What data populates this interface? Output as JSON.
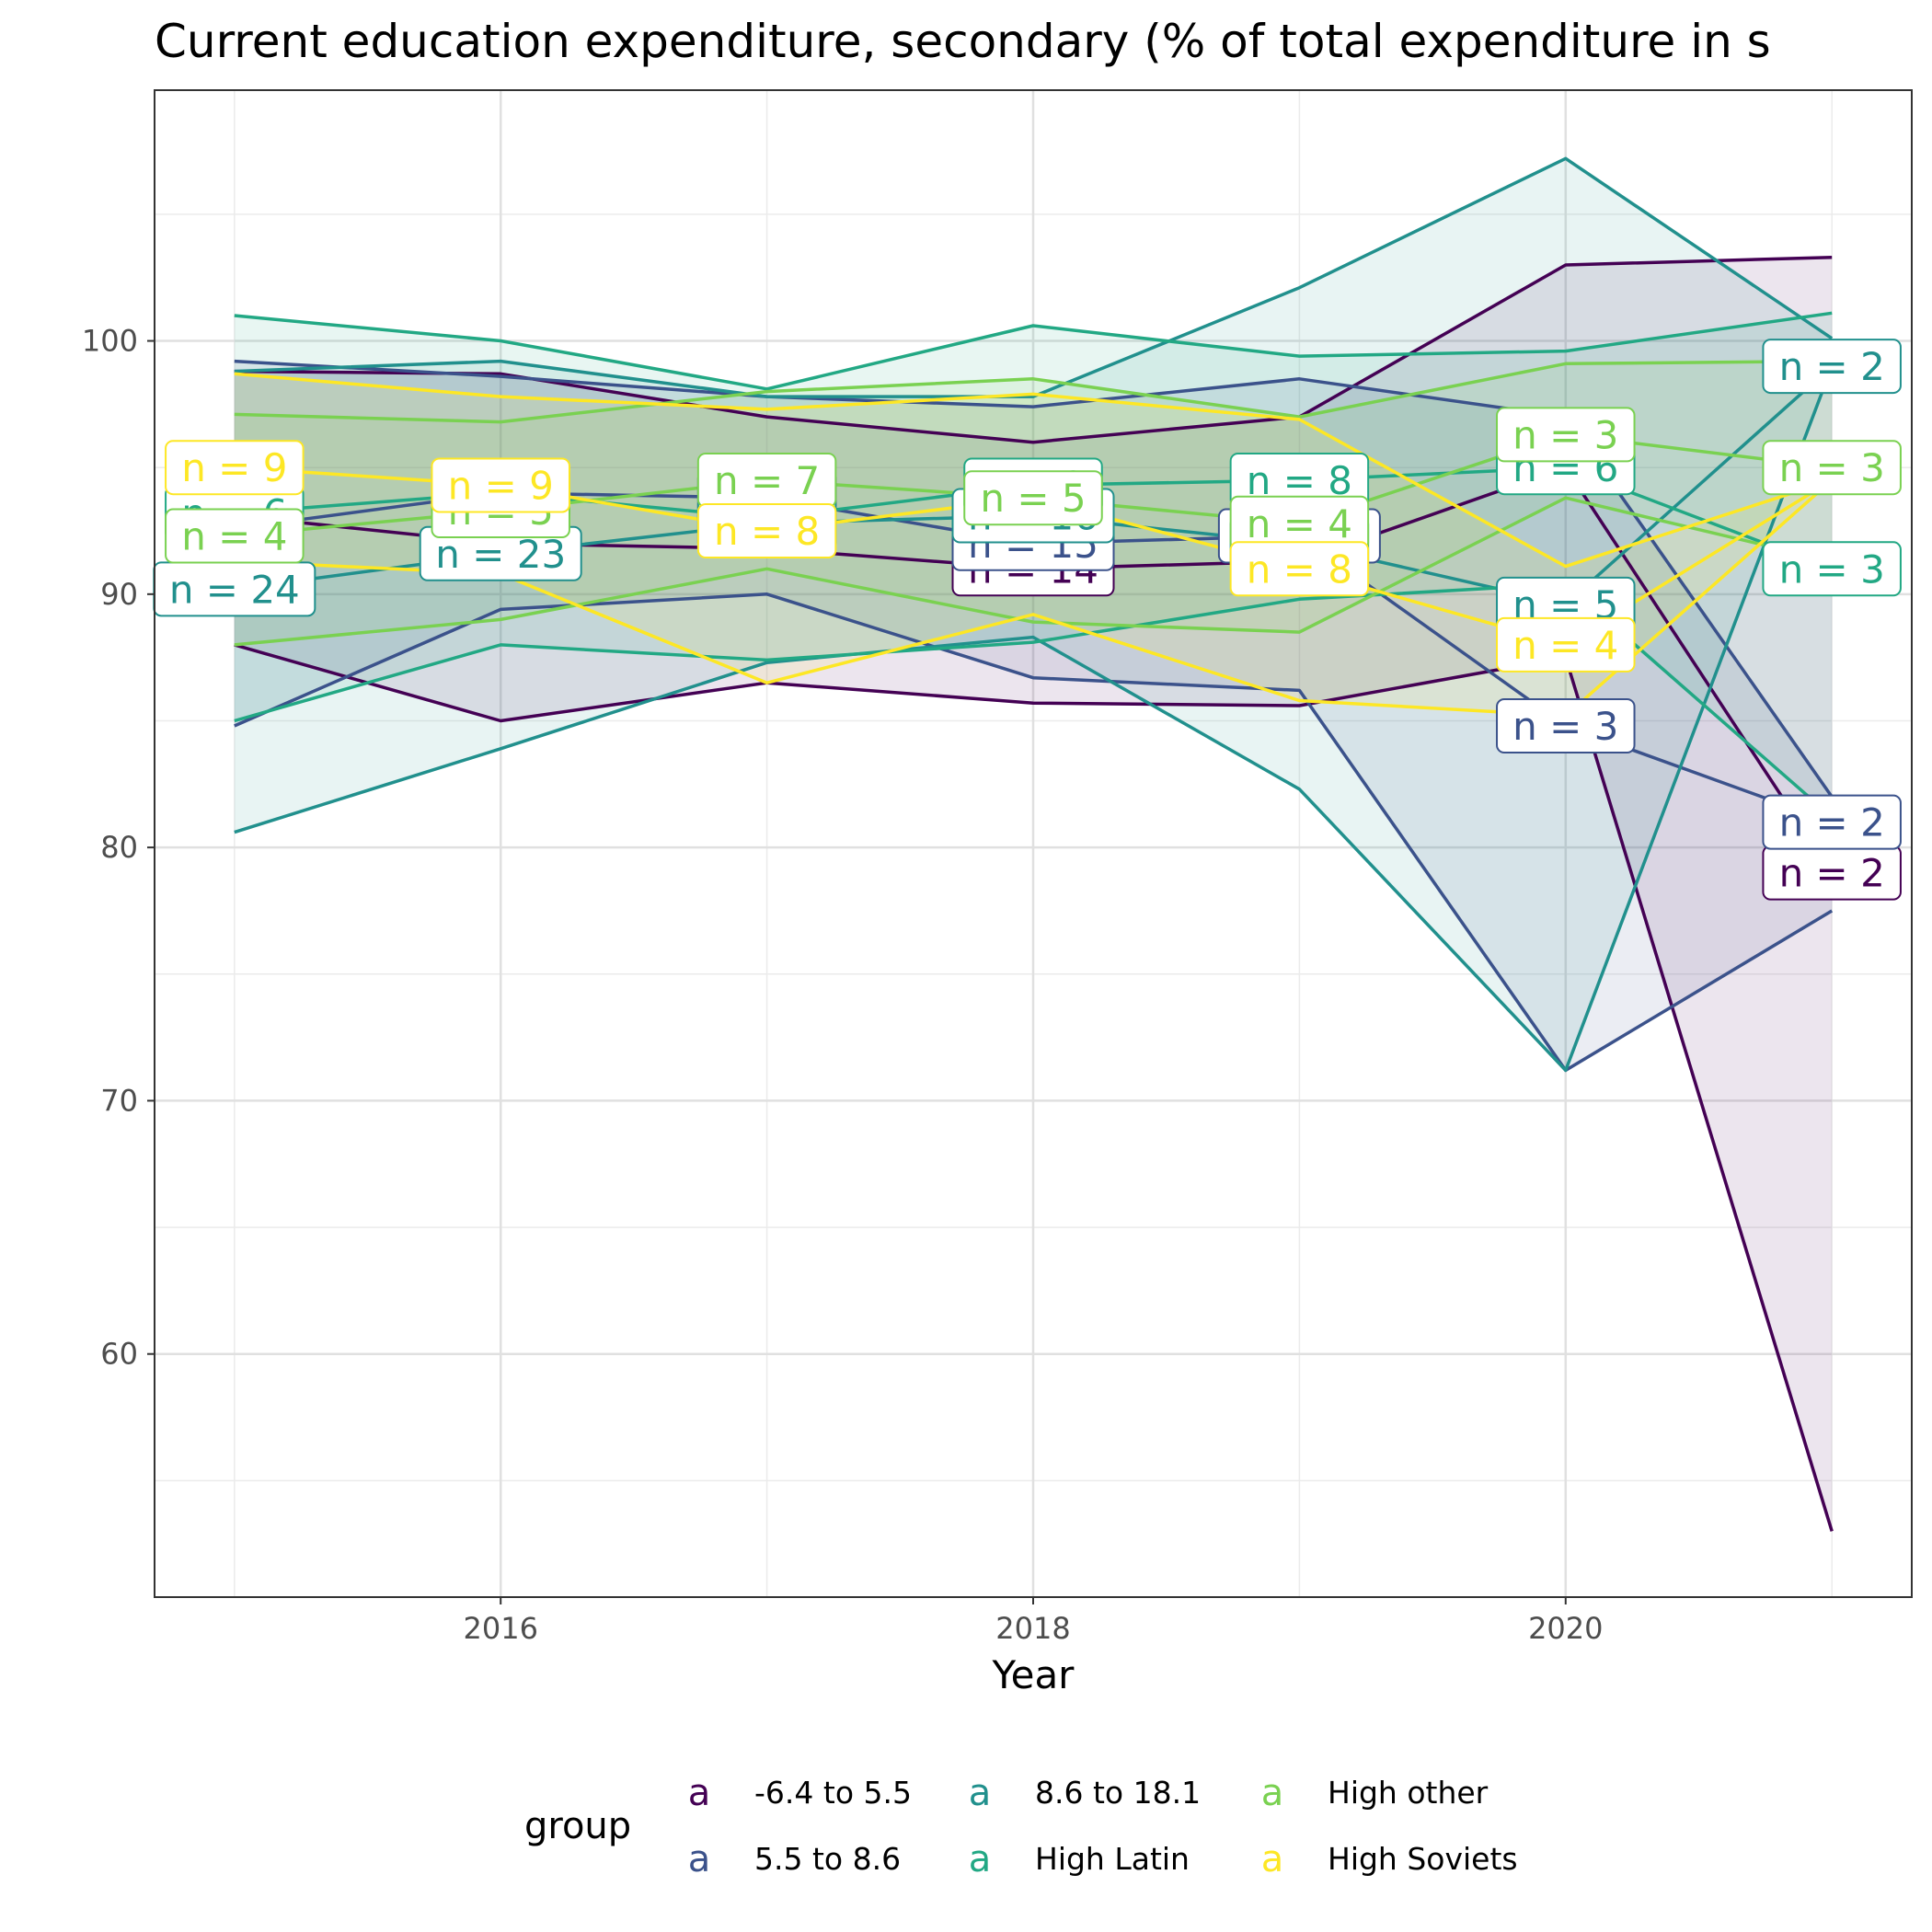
{
  "chart_data": {
    "type": "line",
    "title": "Current education expenditure, secondary (% of total expenditure in s",
    "xlabel": "Year",
    "ylabel": "",
    "x_ticks": [
      "2016",
      "2018",
      "2020"
    ],
    "y_ticks": [
      "60",
      "70",
      "80",
      "90",
      "100"
    ],
    "x_range": [
      2014.7,
      2021.3
    ],
    "ylim": [
      50.4,
      109.9
    ],
    "grid": true,
    "legend_position": "bottom",
    "legend_title": "group",
    "legend_key_glyph": "a",
    "series": [
      {
        "name": "-6.4 to 5.5",
        "color": "#440154",
        "x": [
          2015,
          2016,
          2017,
          2018,
          2019,
          2020,
          2021
        ],
        "mean": [
          93.1,
          92.0,
          91.8,
          91.0,
          91.3,
          95.0,
          79.0
        ],
        "upper": [
          98.8,
          98.7,
          97.0,
          96.0,
          97.0,
          103.0,
          103.3
        ],
        "lower": [
          88.0,
          85.0,
          86.5,
          85.7,
          85.6,
          87.5,
          53.0
        ],
        "n_labels": [
          "",
          "",
          "",
          "n = 14",
          "",
          "",
          "n = 2"
        ]
      },
      {
        "name": "5.5 to 8.6",
        "color": "#3b528b",
        "x": [
          2015,
          2016,
          2017,
          2018,
          2019,
          2020,
          2021
        ],
        "mean": [
          92.6,
          94.0,
          93.8,
          92.0,
          92.3,
          84.8,
          81.0
        ],
        "upper": [
          99.2,
          98.6,
          97.8,
          97.4,
          98.5,
          97.0,
          82.0
        ],
        "lower": [
          84.8,
          89.4,
          90.0,
          86.7,
          86.2,
          71.2,
          77.5
        ],
        "n_labels": [
          "",
          "",
          "n = 9",
          "n = 15",
          "n = 10",
          "n = 3",
          "n = 2"
        ]
      },
      {
        "name": "8.6 to 18.1",
        "color": "#21908d",
        "x": [
          2015,
          2016,
          2017,
          2018,
          2019,
          2020,
          2021
        ],
        "mean": [
          90.2,
          91.6,
          92.8,
          93.1,
          92.0,
          89.6,
          99.0
        ],
        "upper": [
          98.8,
          99.2,
          97.8,
          97.8,
          102.1,
          107.2,
          100.1
        ],
        "lower": [
          80.6,
          83.9,
          87.3,
          88.3,
          82.3,
          71.2,
          99.0
        ],
        "n_labels": [
          "n = 24",
          "n = 23",
          "n = 8",
          "n = 16",
          "n = 9",
          "n = 5",
          "n = 2"
        ]
      },
      {
        "name": "High Latin",
        "color": "#22a884",
        "x": [
          2015,
          2016,
          2017,
          2018,
          2019,
          2020,
          2021
        ],
        "mean": [
          93.2,
          94.0,
          93.0,
          94.3,
          94.5,
          95.0,
          91.0
        ],
        "upper": [
          101.0,
          100.0,
          98.1,
          100.6,
          99.4,
          99.6,
          101.1
        ],
        "lower": [
          85.0,
          88.0,
          87.4,
          88.1,
          89.8,
          90.4,
          81.2
        ],
        "n_labels": [
          "n = 6",
          "n = 7",
          "",
          "n = 9",
          "n = 8",
          "n = 6",
          "n = 3"
        ]
      },
      {
        "name": "High other",
        "color": "#7ad151",
        "x": [
          2015,
          2016,
          2017,
          2018,
          2019,
          2020,
          2021
        ],
        "mean": [
          92.3,
          93.3,
          94.5,
          93.8,
          92.8,
          96.3,
          95.0
        ],
        "upper": [
          97.1,
          96.8,
          98.0,
          98.5,
          97.0,
          99.1,
          99.2
        ],
        "lower": [
          88.0,
          89.0,
          91.0,
          88.9,
          88.5,
          93.8,
          91.3
        ],
        "n_labels": [
          "n = 4",
          "n = 5",
          "n = 7",
          "n = 5",
          "n = 4",
          "n = 3",
          "n = 3"
        ]
      },
      {
        "name": "High Soviets",
        "color": "#fde725",
        "x": [
          2015,
          2016,
          2017,
          2018,
          2019,
          2020,
          2021
        ],
        "mean": [
          95.0,
          94.3,
          92.5,
          93.8,
          91.0,
          88.0,
          94.5
        ],
        "upper": [
          98.7,
          97.8,
          97.3,
          97.9,
          96.9,
          91.1,
          94.5
        ],
        "lower": [
          91.3,
          90.8,
          86.5,
          89.2,
          85.8,
          85.2,
          94.5
        ],
        "n_labels": [
          "n = 9",
          "n = 9",
          "n = 8",
          "",
          "n = 8",
          "n = 4",
          ""
        ]
      }
    ]
  }
}
